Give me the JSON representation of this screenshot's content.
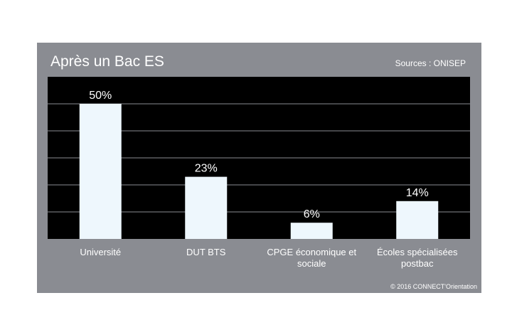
{
  "header": {
    "title": "Après un Bac ES",
    "source": "Sources : ONISEP"
  },
  "footer": {
    "copyright": "© 2016 CONNECT'Orientation"
  },
  "colors": {
    "card_background": "#8a8c92",
    "plot_background": "#000000",
    "bar_fill": "#eef7fd",
    "grid_line": "#8a8c92",
    "text": "#ffffff"
  },
  "chart_data": {
    "type": "bar",
    "title": "Après un Bac ES",
    "categories": [
      [
        "Université"
      ],
      [
        "DUT BTS"
      ],
      [
        "CPGE économique et",
        "sociale"
      ],
      [
        "Écoles spécialisées",
        "postbac"
      ]
    ],
    "values": [
      50,
      23,
      6,
      14
    ],
    "data_labels": [
      "50%",
      "23%",
      "6%",
      "14%"
    ],
    "unit": "%",
    "ylim": [
      0,
      60
    ],
    "grid": true,
    "grid_step": 10,
    "legend": "none"
  }
}
